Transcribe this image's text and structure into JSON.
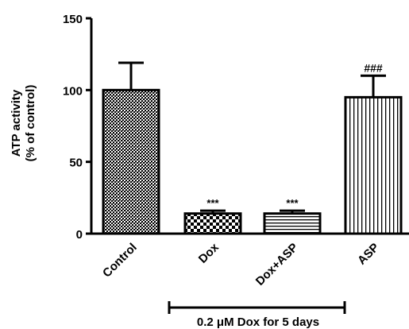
{
  "chart_data": {
    "type": "bar",
    "categories": [
      "Control",
      "Dox",
      "Dox+ASP",
      "ASP"
    ],
    "values": [
      100,
      14,
      14,
      95
    ],
    "errors": [
      19,
      2,
      2,
      15
    ],
    "significance": [
      "",
      "***",
      "***",
      "###"
    ],
    "ylabel_line1": "ATP activity",
    "ylabel_line2": "(% of control)",
    "yticks": [
      0,
      50,
      100,
      150
    ],
    "ylim": [
      0,
      150
    ],
    "xlabel": "",
    "title": "",
    "bracket_label": "0.2 μM Dox for 5 days",
    "bracket_span": [
      "Dox",
      "ASP"
    ],
    "grid": false,
    "legend": false,
    "bar_patterns": [
      "crosshatch",
      "checker",
      "horizontal-lines",
      "vertical-lines"
    ],
    "colors": {
      "bar_stroke": "#000000",
      "background": "#ffffff"
    }
  }
}
